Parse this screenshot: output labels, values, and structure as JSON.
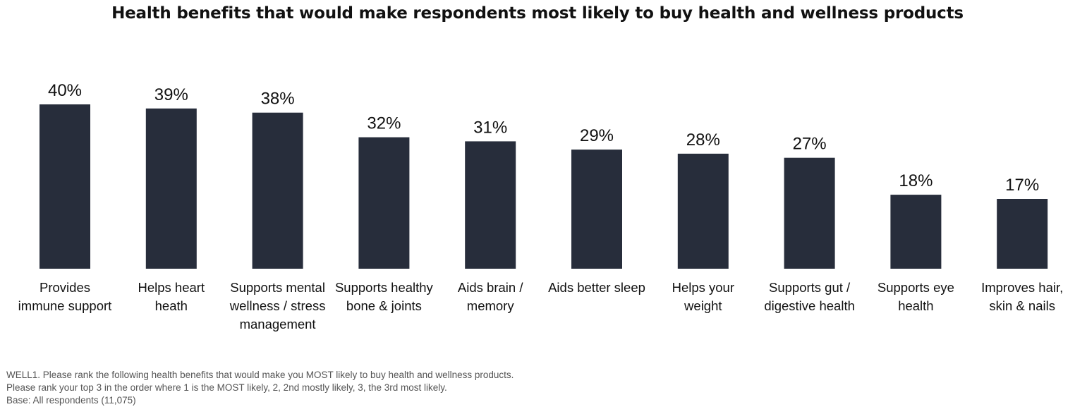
{
  "chart_data": {
    "type": "bar",
    "title": "Health benefits that would make respondents most likely to buy health and wellness products",
    "categories": [
      [
        "Provides",
        "immune support"
      ],
      [
        "Helps heart",
        "heath"
      ],
      [
        "Supports mental",
        "wellness / stress",
        "management"
      ],
      [
        "Supports healthy",
        "bone & joints"
      ],
      [
        "Aids brain /",
        "memory"
      ],
      [
        "Aids better sleep"
      ],
      [
        "Helps your",
        "weight"
      ],
      [
        "Supports gut /",
        "digestive health"
      ],
      [
        "Supports eye",
        "health"
      ],
      [
        "Improves hair,",
        "skin & nails"
      ]
    ],
    "values": [
      40,
      39,
      38,
      32,
      31,
      29,
      28,
      27,
      18,
      17
    ],
    "value_labels": [
      "40%",
      "39%",
      "38%",
      "32%",
      "31%",
      "29%",
      "28%",
      "27%",
      "18%",
      "17%"
    ],
    "unit": "%",
    "xlabel": "",
    "ylabel": "",
    "ylim": [
      0,
      40
    ],
    "grid": false,
    "legend": "none",
    "bar_color": "#272d3b"
  },
  "footnote": {
    "line1": "WELL1. Please rank the following health benefits that would make you MOST likely to buy health and wellness products.",
    "line2": "Please rank your top 3 in the order where 1 is the MOST likely, 2, 2nd mostly likely, 3, the 3rd most likely.",
    "line3": "Base: All respondents (11,075)"
  }
}
